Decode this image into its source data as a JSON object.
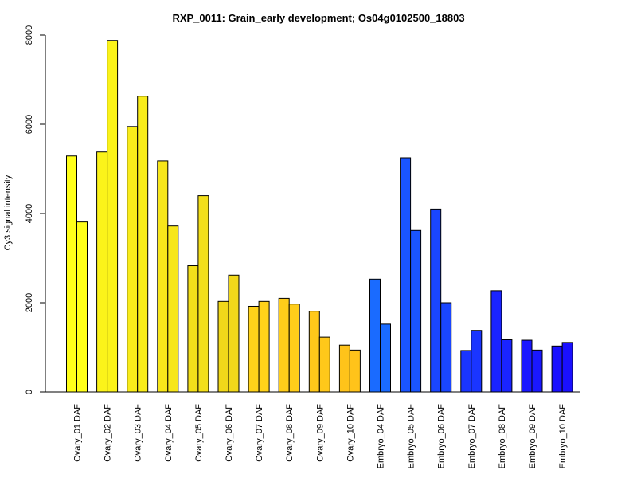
{
  "chart_data": {
    "type": "bar",
    "title": "RXP_0011: Grain_early development; Os04g0102500_18803",
    "xlabel": "",
    "ylabel": "Cy3 signal intensity",
    "ylim": [
      0,
      8000
    ],
    "yticks": [
      0,
      2000,
      4000,
      6000,
      8000
    ],
    "grid": false,
    "legend": "none",
    "categories": [
      "Ovary_01 DAF",
      "Ovary_02 DAF",
      "Ovary_03 DAF",
      "Ovary_04 DAF",
      "Ovary_05 DAF",
      "Ovary_06 DAF",
      "Ovary_07 DAF",
      "Ovary_08 DAF",
      "Ovary_09 DAF",
      "Ovary_10 DAF",
      "Embryo_04 DAF",
      "Embryo_05 DAF",
      "Embryo_06 DAF",
      "Embryo_07 DAF",
      "Embryo_08 DAF",
      "Embryo_09 DAF",
      "Embryo_10 DAF"
    ],
    "colors": [
      "#ffff1a",
      "#fbf31a",
      "#f9ec1a",
      "#f7e61a",
      "#f3df1a",
      "#f1d81a",
      "#ffd21a",
      "#ffcd1a",
      "#ffc81a",
      "#ffc31a",
      "#1a6bff",
      "#1a55ff",
      "#1a46ff",
      "#1a35ff",
      "#1a24ff",
      "#1a18ff",
      "#1a10ff"
    ],
    "series": [
      {
        "values": [
          5290,
          5380,
          5950,
          5180,
          2830,
          2030,
          1920,
          2100,
          1810,
          1050,
          2530,
          5250,
          4100,
          930,
          2270,
          1160,
          1030
        ]
      },
      {
        "values": [
          3810,
          7880,
          6630,
          3720,
          4400,
          2620,
          2030,
          1970,
          1230,
          940,
          1520,
          3620,
          2000,
          1380,
          1170,
          940,
          1110
        ]
      }
    ]
  }
}
